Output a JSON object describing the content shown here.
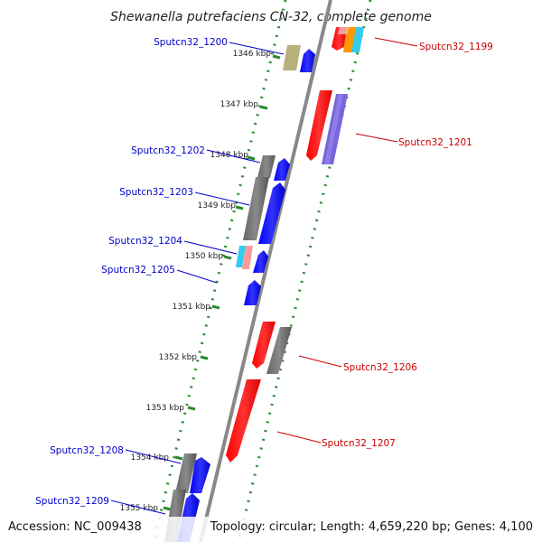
{
  "title": "Shewanella putrefaciens CN-32, complete genome",
  "footer": {
    "accession": "Accession: NC_009438",
    "summary": "Topology: circular; Length: 4,659,220 bp; Genes: 4,100"
  },
  "colors": {
    "forward_label": "#0000cc",
    "reverse_label": "#cc0000",
    "backbone": "#888888",
    "dots": "#2a8a2a"
  },
  "ticks": [
    "1346 kbp",
    "1347 kbp",
    "1348 kbp",
    "1349 kbp",
    "1350 kbp",
    "1351 kbp",
    "1352 kbp",
    "1353 kbp",
    "1354 kbp",
    "1355 kbp"
  ],
  "labels": {
    "g1199": "Sputcn32_1199",
    "g1200": "Sputcn32_1200",
    "g1201": "Sputcn32_1201",
    "g1202": "Sputcn32_1202",
    "g1203": "Sputcn32_1203",
    "g1204": "Sputcn32_1204",
    "g1205": "Sputcn32_1205",
    "g1206": "Sputcn32_1206",
    "g1207": "Sputcn32_1207",
    "g1208": "Sputcn32_1208",
    "g1209": "Sputcn32_1209"
  }
}
